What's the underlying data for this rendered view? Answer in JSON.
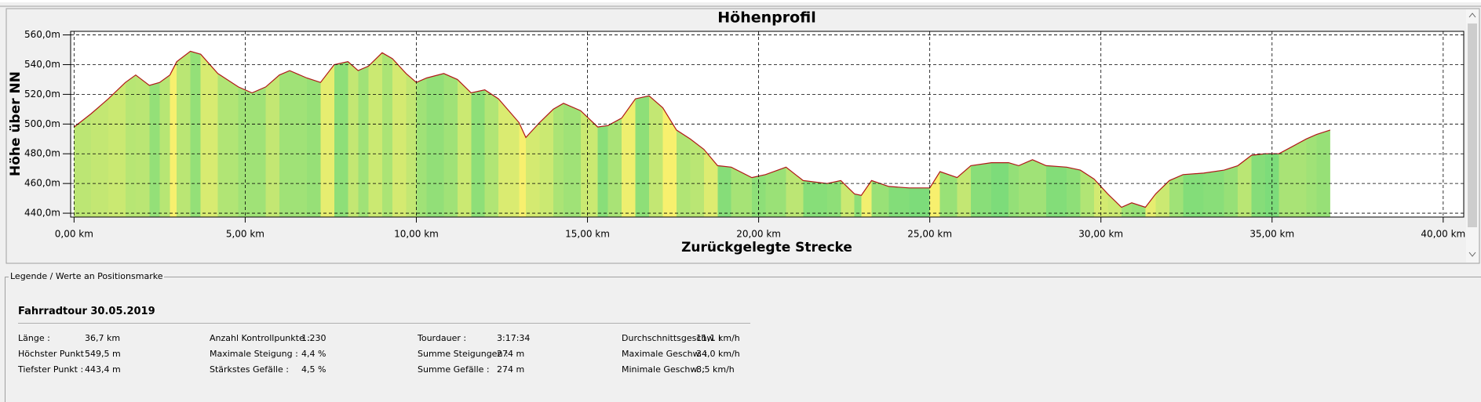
{
  "chart_data": {
    "type": "area",
    "title": "Höhenprofil",
    "x_label": "Zurückgelegte Strecke",
    "y_label": "Höhe über NN",
    "x": [
      0,
      0.5,
      1,
      1.5,
      1.8,
      2.2,
      2.5,
      2.8,
      3.0,
      3.4,
      3.7,
      4.2,
      4.8,
      5.2,
      5.6,
      6.0,
      6.3,
      6.8,
      7.2,
      7.6,
      8.0,
      8.3,
      8.6,
      9.0,
      9.3,
      9.7,
      10.0,
      10.3,
      10.8,
      11.2,
      11.6,
      12.0,
      12.4,
      13.0,
      13.2,
      13.6,
      14.0,
      14.3,
      14.8,
      15.3,
      15.6,
      16.0,
      16.4,
      16.8,
      17.2,
      17.6,
      18.0,
      18.4,
      18.8,
      19.2,
      19.8,
      20.2,
      20.8,
      21.3,
      22.0,
      22.4,
      22.8,
      23.0,
      23.3,
      23.8,
      24.4,
      25.0,
      25.3,
      25.8,
      26.2,
      26.8,
      27.3,
      27.6,
      28.0,
      28.4,
      29.0,
      29.4,
      29.8,
      30.2,
      30.6,
      30.9,
      31.3,
      31.6,
      32.0,
      32.4,
      33.0,
      33.6,
      34.0,
      34.4,
      34.8,
      35.2,
      35.6,
      36.0,
      36.3,
      36.7
    ],
    "values": [
      498,
      507,
      517,
      528,
      533,
      526,
      528,
      533,
      542,
      549,
      547,
      534,
      525,
      521,
      525,
      533,
      536,
      531,
      528,
      540,
      542,
      536,
      539,
      548,
      544,
      534,
      528,
      531,
      534,
      530,
      521,
      523,
      517,
      501,
      491,
      501,
      510,
      514,
      509,
      498,
      499,
      504,
      517,
      519,
      511,
      496,
      490,
      483,
      472,
      471,
      464,
      466,
      471,
      462,
      460,
      462,
      453,
      452,
      462,
      458,
      457,
      457,
      468,
      464,
      472,
      474,
      474,
      472,
      476,
      472,
      471,
      469,
      463,
      453,
      444,
      447,
      444,
      453,
      462,
      466,
      467,
      469,
      472,
      479,
      480,
      480,
      485,
      490,
      493,
      496
    ],
    "color": "#7ddc7a",
    "line_color": "#b01818",
    "xlim": [
      -0.1,
      40.6
    ],
    "ylim": [
      437.4,
      562.4
    ],
    "xticks": [
      {
        "value": 0,
        "label": "0,00 km"
      },
      {
        "value": 5,
        "label": "5,00 km"
      },
      {
        "value": 10,
        "label": "10,00 km"
      },
      {
        "value": 15,
        "label": "15,00 km"
      },
      {
        "value": 20,
        "label": "20,00 km"
      },
      {
        "value": 25,
        "label": "25,00 km"
      },
      {
        "value": 30,
        "label": "30,00 km"
      },
      {
        "value": 35,
        "label": "35,00 km"
      },
      {
        "value": 40,
        "label": "40,00 km"
      }
    ],
    "yticks": [
      {
        "value": 440,
        "label": "440,0m"
      },
      {
        "value": 460,
        "label": "460,0m"
      },
      {
        "value": 480,
        "label": "480,0m"
      },
      {
        "value": 500,
        "label": "500,0m"
      },
      {
        "value": 520,
        "label": "520,0m"
      },
      {
        "value": 540,
        "label": "540,0m"
      },
      {
        "value": 560,
        "label": "560,0m"
      }
    ],
    "grid": true
  },
  "legend_panel": {
    "caption": "Legende / Werte an Positionsmarke",
    "title": "Fahrradtour 30.05.2019",
    "columns": [
      [
        {
          "label": "Länge :",
          "value": "36,7 km"
        },
        {
          "label": "Höchster Punkt :",
          "value": "549,5 m"
        },
        {
          "label": "Tiefster Punkt :",
          "value": "443,4 m"
        }
      ],
      [
        {
          "label": "Anzahl Kontrollpunkte :",
          "value": "1.230"
        },
        {
          "label": "Maximale Steigung :",
          "value": "4,4 %"
        },
        {
          "label": "Stärkstes Gefälle :",
          "value": "4,5 %"
        }
      ],
      [
        {
          "label": "Tourdauer :",
          "value": "3:17:34"
        },
        {
          "label": "Summe Steigungen :",
          "value": "274 m"
        },
        {
          "label": "Summe Gefälle :",
          "value": "274 m"
        }
      ],
      [
        {
          "label": "Durchschnittsgeschw. :",
          "value": "11,1 km/h"
        },
        {
          "label": "Maximale Geschw. :",
          "value": "34,0 km/h"
        },
        {
          "label": "Minimale Geschw. :",
          "value": "8,5 km/h"
        }
      ]
    ]
  }
}
